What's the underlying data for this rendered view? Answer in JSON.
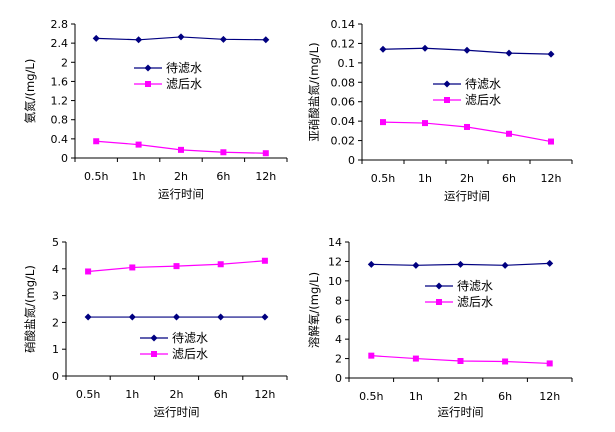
{
  "chart_data": [
    {
      "type": "line",
      "categories": [
        "0.5h",
        "1h",
        "2h",
        "6h",
        "12h"
      ],
      "xlabel": "运行时间",
      "ylabel": "氨氮/(mg/L)",
      "ylim": [
        0,
        2.8
      ],
      "yticks": [
        "0",
        "0.4",
        "0.8",
        "1.2",
        "1.6",
        "2",
        "2.4",
        "2.8"
      ],
      "legend_position": "middle-right",
      "series": [
        {
          "name": "待滤水",
          "color": "#000080",
          "marker": "diamond",
          "values": [
            2.5,
            2.47,
            2.53,
            2.48,
            2.47
          ]
        },
        {
          "name": "滤后水",
          "color": "#ff00ff",
          "marker": "square",
          "values": [
            0.35,
            0.28,
            0.17,
            0.12,
            0.1
          ]
        }
      ]
    },
    {
      "type": "line",
      "categories": [
        "0.5h",
        "1h",
        "2h",
        "6h",
        "12h"
      ],
      "xlabel": "运行时间",
      "ylabel": "亚硝酸盐氮/(mg/L)",
      "ylim": [
        0,
        0.14
      ],
      "yticks": [
        "0",
        "0.02",
        "0.04",
        "0.06",
        "0.08",
        "0.1",
        "0.12",
        "0.14"
      ],
      "legend_position": "middle-right",
      "series": [
        {
          "name": "待滤水",
          "color": "#000080",
          "marker": "diamond",
          "values": [
            0.114,
            0.115,
            0.113,
            0.11,
            0.109
          ]
        },
        {
          "name": "滤后水",
          "color": "#ff00ff",
          "marker": "square",
          "values": [
            0.039,
            0.038,
            0.034,
            0.027,
            0.019
          ]
        }
      ]
    },
    {
      "type": "line",
      "categories": [
        "0.5h",
        "1h",
        "2h",
        "6h",
        "12h"
      ],
      "xlabel": "运行时间",
      "ylabel": "硝酸盐氮/(mg/L)",
      "ylim": [
        0,
        5
      ],
      "yticks": [
        "0",
        "1",
        "2",
        "3",
        "4",
        "5"
      ],
      "legend_position": "bottom-center",
      "series": [
        {
          "name": "待滤水",
          "color": "#000080",
          "marker": "diamond",
          "values": [
            2.2,
            2.2,
            2.2,
            2.2,
            2.2
          ]
        },
        {
          "name": "滤后水",
          "color": "#ff00ff",
          "marker": "square",
          "values": [
            3.9,
            4.05,
            4.1,
            4.17,
            4.3
          ]
        }
      ]
    },
    {
      "type": "line",
      "categories": [
        "0.5h",
        "1h",
        "2h",
        "6h",
        "12h"
      ],
      "xlabel": "运行时间",
      "ylabel": "溶解氧/(mg/L)",
      "ylim": [
        0,
        14
      ],
      "yticks": [
        "0",
        "2",
        "4",
        "6",
        "8",
        "10",
        "12",
        "14"
      ],
      "legend_position": "middle-right",
      "series": [
        {
          "name": "待滤水",
          "color": "#000080",
          "marker": "diamond",
          "values": [
            11.7,
            11.6,
            11.7,
            11.6,
            11.8
          ]
        },
        {
          "name": "滤后水",
          "color": "#ff00ff",
          "marker": "square",
          "values": [
            2.3,
            2.0,
            1.75,
            1.7,
            1.5
          ]
        }
      ]
    }
  ]
}
